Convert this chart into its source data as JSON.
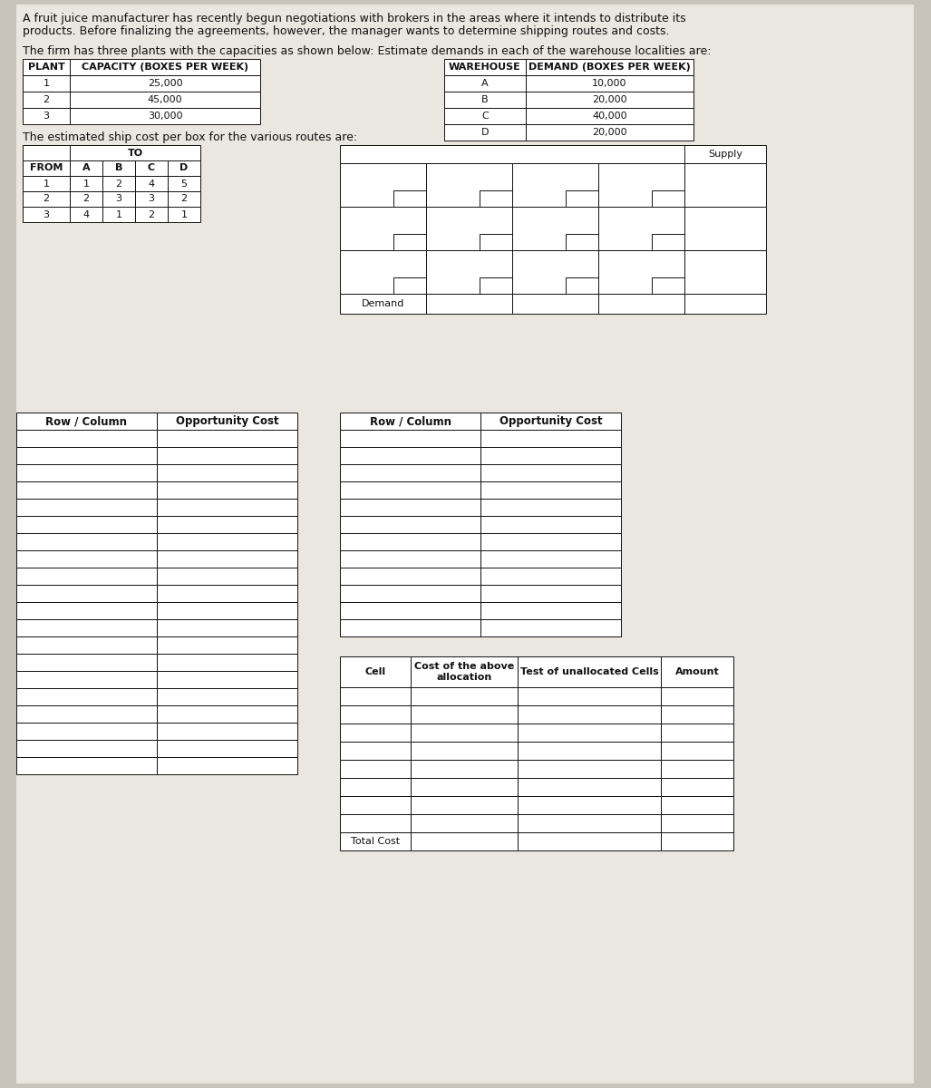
{
  "bg_color": "#c8c4bc",
  "paper_color": "#eae6e0",
  "title_line1": "A fruit juice manufacturer has recently begun negotiations with brokers in the areas where it intends to distribute its",
  "title_line2": "products. Before finalizing the agreements, however, the manager wants to determine shipping routes and costs.",
  "plant_intro": "The firm has three plants with the capacities as shown below: Estimate demands in each of the warehouse localities are:",
  "plant_table": {
    "headers": [
      "PLANT",
      "CAPACITY (BOXES PER WEEK)"
    ],
    "rows": [
      [
        "1",
        "25,000"
      ],
      [
        "2",
        "45,000"
      ],
      [
        "3",
        "30,000"
      ]
    ]
  },
  "warehouse_table": {
    "headers": [
      "WAREHOUSE",
      "DEMAND (BOXES PER WEEK)"
    ],
    "rows": [
      [
        "A",
        "10,000"
      ],
      [
        "B",
        "20,000"
      ],
      [
        "C",
        "40,000"
      ],
      [
        "D",
        "20,000"
      ]
    ]
  },
  "ship_cost_intro": "The estimated ship cost per box for the various routes are:",
  "ship_cost_table": {
    "headers": [
      "FROM",
      "A",
      "B",
      "C",
      "D"
    ],
    "rows": [
      [
        "1",
        "1",
        "2",
        "4",
        "5"
      ],
      [
        "2",
        "2",
        "3",
        "3",
        "2"
      ],
      [
        "3",
        "4",
        "1",
        "2",
        "1"
      ]
    ]
  },
  "opp_cost_table1": {
    "headers": [
      "Row / Column",
      "Opportunity Cost"
    ],
    "num_rows": 20
  },
  "opp_cost_table2": {
    "headers": [
      "Row / Column",
      "Opportunity Cost"
    ],
    "num_rows": 12
  },
  "cost_table": {
    "headers": [
      "Cell",
      "Cost of the above\nallocation",
      "Test of unallocated Cells",
      "Amount"
    ],
    "num_rows": 8,
    "footer": "Total Cost"
  },
  "alloc_supply_label": "Supply",
  "alloc_demand_label": "Demand"
}
